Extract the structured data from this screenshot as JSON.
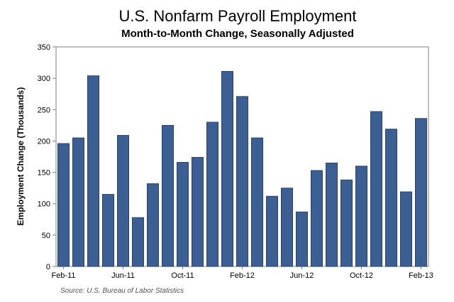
{
  "chart_data": {
    "type": "bar",
    "title": "U.S. Nonfarm Payroll Employment",
    "subtitle": "Month-to-Month Change, Seasonally Adjusted",
    "ylabel": "Employment Change (Thousands)",
    "xlabel": "",
    "ylim": [
      0,
      350
    ],
    "yticks": [
      0,
      50,
      100,
      150,
      200,
      250,
      300,
      350
    ],
    "categories": [
      "Feb-11",
      "Mar-11",
      "Apr-11",
      "May-11",
      "Jun-11",
      "Jul-11",
      "Aug-11",
      "Sep-11",
      "Oct-11",
      "Nov-11",
      "Dec-11",
      "Jan-12",
      "Feb-12",
      "Mar-12",
      "Apr-12",
      "May-12",
      "Jun-12",
      "Jul-12",
      "Aug-12",
      "Sep-12",
      "Oct-12",
      "Nov-12",
      "Dec-12",
      "Jan-13",
      "Feb-13"
    ],
    "values": [
      196,
      205,
      304,
      115,
      209,
      78,
      132,
      225,
      166,
      174,
      230,
      311,
      271,
      205,
      112,
      125,
      87,
      153,
      165,
      138,
      160,
      247,
      219,
      119,
      236
    ],
    "x_tick_labels": [
      {
        "index": 0,
        "label": "Feb-11"
      },
      {
        "index": 4,
        "label": "Jun-11"
      },
      {
        "index": 8,
        "label": "Oct-11"
      },
      {
        "index": 12,
        "label": "Feb-12"
      },
      {
        "index": 16,
        "label": "Jun-12"
      },
      {
        "index": 20,
        "label": "Oct-12"
      },
      {
        "index": 24,
        "label": "Feb-13"
      }
    ],
    "bar_color": "#3b5f92",
    "grid": false,
    "legend": "none",
    "source": "Source: U.S. Bureau of Labor Statistics"
  }
}
